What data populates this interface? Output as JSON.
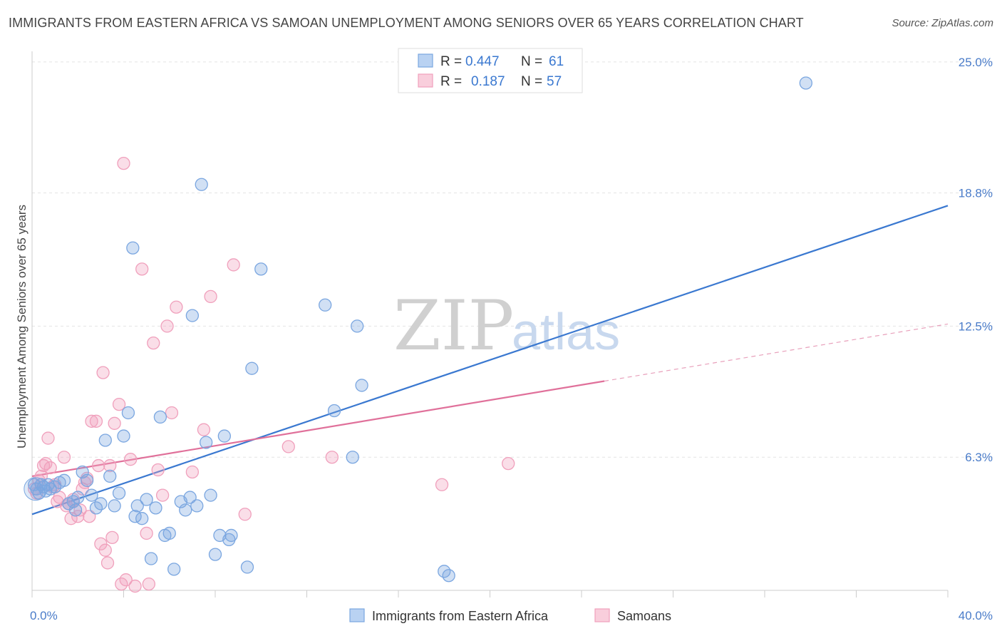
{
  "title": "IMMIGRANTS FROM EASTERN AFRICA VS SAMOAN UNEMPLOYMENT AMONG SENIORS OVER 65 YEARS CORRELATION CHART",
  "source": "Source: ZipAtlas.com",
  "watermark": {
    "zip": "ZIP",
    "atlas": "atlas"
  },
  "legend": {
    "r_label": "R =",
    "n_label": "N =",
    "series": [
      {
        "r": "0.447",
        "n": "61"
      },
      {
        "r": "0.187",
        "n": "57"
      }
    ]
  },
  "chart_data": {
    "type": "scatter",
    "title": "IMMIGRANTS FROM EASTERN AFRICA VS SAMOAN UNEMPLOYMENT AMONG SENIORS OVER 65 YEARS CORRELATION CHART",
    "xlabel": "",
    "ylabel": "Unemployment Among Seniors over 65 years",
    "xlim": [
      0,
      40
    ],
    "ylim": [
      0,
      25.5
    ],
    "x_tick_labels": [
      "0.0%",
      "40.0%"
    ],
    "y_ticks": [
      6.3,
      12.5,
      18.8,
      25.0
    ],
    "y_tick_labels": [
      "6.3%",
      "12.5%",
      "18.8%",
      "25.0%"
    ],
    "colors": {
      "blue": "#7aa6e0",
      "blue_line": "#3a78d0",
      "pink": "#f0a0bc",
      "pink_line": "#e0709a",
      "tick": "#4a7cc9"
    },
    "series": [
      {
        "name": "Immigrants from Eastern Africa",
        "color": "#7aa6e0",
        "trend": {
          "x0": 0,
          "y0": 3.6,
          "x1": 40,
          "y1": 18.2
        },
        "points": [
          [
            0.2,
            4.8
          ],
          [
            0.3,
            4.6
          ],
          [
            0.4,
            5.0
          ],
          [
            0.5,
            4.9
          ],
          [
            0.6,
            4.7
          ],
          [
            0.7,
            5.0
          ],
          [
            0.8,
            4.8
          ],
          [
            1.0,
            4.9
          ],
          [
            1.2,
            5.1
          ],
          [
            1.4,
            5.2
          ],
          [
            1.6,
            4.1
          ],
          [
            1.8,
            4.2
          ],
          [
            1.9,
            3.8
          ],
          [
            2.0,
            4.4
          ],
          [
            2.2,
            5.6
          ],
          [
            2.4,
            5.2
          ],
          [
            2.6,
            4.5
          ],
          [
            2.8,
            3.9
          ],
          [
            3.0,
            4.1
          ],
          [
            3.2,
            7.1
          ],
          [
            3.4,
            5.4
          ],
          [
            3.6,
            4.0
          ],
          [
            3.8,
            4.6
          ],
          [
            4.0,
            7.3
          ],
          [
            4.2,
            8.4
          ],
          [
            4.4,
            16.2
          ],
          [
            4.5,
            3.5
          ],
          [
            4.6,
            4.0
          ],
          [
            4.8,
            3.4
          ],
          [
            5.0,
            4.3
          ],
          [
            5.2,
            1.5
          ],
          [
            5.4,
            3.9
          ],
          [
            5.6,
            8.2
          ],
          [
            5.8,
            2.6
          ],
          [
            6.0,
            2.7
          ],
          [
            6.2,
            1.0
          ],
          [
            6.5,
            4.2
          ],
          [
            6.7,
            3.8
          ],
          [
            6.9,
            4.4
          ],
          [
            7.0,
            13.0
          ],
          [
            7.2,
            4.0
          ],
          [
            7.4,
            19.2
          ],
          [
            7.6,
            7.0
          ],
          [
            7.8,
            4.5
          ],
          [
            8.0,
            1.7
          ],
          [
            8.2,
            2.6
          ],
          [
            8.4,
            7.3
          ],
          [
            8.6,
            2.4
          ],
          [
            8.7,
            2.6
          ],
          [
            9.4,
            1.1
          ],
          [
            9.6,
            10.5
          ],
          [
            10.0,
            15.2
          ],
          [
            12.8,
            13.5
          ],
          [
            13.2,
            8.5
          ],
          [
            14.0,
            6.3
          ],
          [
            14.2,
            12.5
          ],
          [
            14.4,
            9.7
          ],
          [
            18.0,
            0.9
          ],
          [
            18.2,
            0.7
          ],
          [
            33.8,
            24.0
          ],
          [
            0.1,
            5.0
          ]
        ]
      },
      {
        "name": "Samoans",
        "color": "#f0a0bc",
        "trend": {
          "x0": 0,
          "y0": 5.4,
          "x1": 25,
          "y1": 9.9
        },
        "trend_extension": {
          "x0": 25,
          "y0": 9.9,
          "x1": 40,
          "y1": 12.6
        },
        "points": [
          [
            0.1,
            4.8
          ],
          [
            0.2,
            4.6
          ],
          [
            0.3,
            5.2
          ],
          [
            0.4,
            5.4
          ],
          [
            0.5,
            5.9
          ],
          [
            0.6,
            6.0
          ],
          [
            0.7,
            7.2
          ],
          [
            0.8,
            5.8
          ],
          [
            0.9,
            4.9
          ],
          [
            1.0,
            5.0
          ],
          [
            1.1,
            4.2
          ],
          [
            1.2,
            4.4
          ],
          [
            1.4,
            6.3
          ],
          [
            1.5,
            4.0
          ],
          [
            1.6,
            4.1
          ],
          [
            1.7,
            3.4
          ],
          [
            1.8,
            4.3
          ],
          [
            2.0,
            3.5
          ],
          [
            2.1,
            3.8
          ],
          [
            2.2,
            4.8
          ],
          [
            2.3,
            5.1
          ],
          [
            2.4,
            5.3
          ],
          [
            2.5,
            3.5
          ],
          [
            2.6,
            8.0
          ],
          [
            2.8,
            8.0
          ],
          [
            2.9,
            5.9
          ],
          [
            3.0,
            2.2
          ],
          [
            3.1,
            10.3
          ],
          [
            3.2,
            1.9
          ],
          [
            3.3,
            1.3
          ],
          [
            3.4,
            5.9
          ],
          [
            3.5,
            2.5
          ],
          [
            3.6,
            7.9
          ],
          [
            3.8,
            8.8
          ],
          [
            3.9,
            0.3
          ],
          [
            4.0,
            20.2
          ],
          [
            4.1,
            0.5
          ],
          [
            4.3,
            6.2
          ],
          [
            4.5,
            0.2
          ],
          [
            4.8,
            15.2
          ],
          [
            5.0,
            2.7
          ],
          [
            5.1,
            0.3
          ],
          [
            5.3,
            11.7
          ],
          [
            5.5,
            5.7
          ],
          [
            5.7,
            4.5
          ],
          [
            5.9,
            12.5
          ],
          [
            6.1,
            8.4
          ],
          [
            6.3,
            13.4
          ],
          [
            7.0,
            5.6
          ],
          [
            7.5,
            7.6
          ],
          [
            7.8,
            13.9
          ],
          [
            8.8,
            15.4
          ],
          [
            9.3,
            3.6
          ],
          [
            11.2,
            6.8
          ],
          [
            13.1,
            6.3
          ],
          [
            17.9,
            5.0
          ],
          [
            20.8,
            6.0
          ]
        ]
      }
    ]
  },
  "bottom_legend": {
    "items": [
      {
        "label": "Immigrants from Eastern Africa"
      },
      {
        "label": "Samoans"
      }
    ]
  }
}
